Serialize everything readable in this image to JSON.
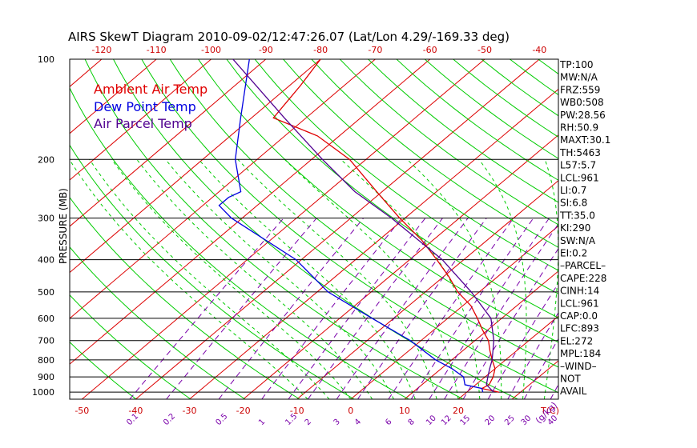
{
  "chart_data": {
    "type": "skew-t",
    "title": "AIRS SkewT Diagram 2010-09-02/12:47:26.07 (Lat/Lon 4.29/-169.33 deg)",
    "ylabel": "PRESSURE (MB)",
    "temperature_unit_label": "T(C)",
    "mixing_ratio_unit_label": "(g/kg)",
    "pressure_ticks": [
      100,
      200,
      300,
      400,
      500,
      600,
      700,
      800,
      900,
      1000
    ],
    "top_temperature_ticks": [
      -120,
      -110,
      -100,
      -90,
      -80,
      -70,
      -60,
      -50,
      -40
    ],
    "bottom_temperature_ticks": [
      -50,
      -40,
      -30,
      -20,
      -10,
      0,
      10,
      20
    ],
    "mixing_ratio_labels": [
      "0.1",
      "0.2",
      "0.5",
      "1",
      "1.5",
      "2",
      "3",
      "4",
      "6",
      "8",
      "10",
      "12",
      "15",
      "20",
      "25",
      "30",
      "40"
    ],
    "mixing_ratio_values": [
      0.1,
      0.2,
      0.5,
      1,
      1.5,
      2,
      3,
      4,
      6,
      8,
      10,
      12,
      15,
      20,
      25,
      30,
      40
    ],
    "legend": [
      {
        "name": "Ambient Air Temp",
        "color": "#e00000"
      },
      {
        "name": "Dew Point Temp",
        "color": "#0000e0"
      },
      {
        "name": "Air Parcel Temp",
        "color": "#500090"
      }
    ],
    "series": [
      {
        "name": "Ambient Air Temp",
        "color": "#e00000",
        "points": [
          [
            1000,
            26
          ],
          [
            975,
            22
          ],
          [
            950,
            22.5
          ],
          [
            900,
            21.5
          ],
          [
            850,
            20
          ],
          [
            800,
            17.5
          ],
          [
            750,
            15
          ],
          [
            700,
            12.5
          ],
          [
            650,
            9
          ],
          [
            600,
            5.5
          ],
          [
            550,
            1.5
          ],
          [
            500,
            -4
          ],
          [
            450,
            -9
          ],
          [
            400,
            -15
          ],
          [
            350,
            -22
          ],
          [
            300,
            -31
          ],
          [
            250,
            -41
          ],
          [
            200,
            -53
          ],
          [
            170,
            -64
          ],
          [
            150,
            -76
          ],
          [
            120,
            -78
          ],
          [
            100,
            -80
          ]
        ]
      },
      {
        "name": "Dew Point Temp",
        "color": "#0000e0",
        "points": [
          [
            1000,
            23
          ],
          [
            975,
            22
          ],
          [
            950,
            18
          ],
          [
            900,
            16
          ],
          [
            850,
            12
          ],
          [
            800,
            7
          ],
          [
            700,
            -2
          ],
          [
            600,
            -14
          ],
          [
            500,
            -28
          ],
          [
            400,
            -41
          ],
          [
            300,
            -62
          ],
          [
            275,
            -67
          ],
          [
            260,
            -67
          ],
          [
            250,
            -66
          ],
          [
            200,
            -74
          ],
          [
            150,
            -82
          ],
          [
            100,
            -93
          ]
        ]
      },
      {
        "name": "Air Parcel Temp",
        "color": "#500090",
        "points": [
          [
            1000,
            25
          ],
          [
            950,
            22
          ],
          [
            900,
            20.5
          ],
          [
            850,
            19
          ],
          [
            800,
            17.5
          ],
          [
            700,
            13.5
          ],
          [
            600,
            8
          ],
          [
            500,
            -1.5
          ],
          [
            400,
            -14
          ],
          [
            300,
            -32.5
          ],
          [
            250,
            -45
          ],
          [
            200,
            -58
          ],
          [
            150,
            -74
          ],
          [
            100,
            -96
          ]
        ]
      }
    ]
  },
  "stats": [
    "TP:100",
    "MW:N/A",
    "FRZ:559",
    "WB0:508",
    "PW:28.56",
    "RH:50.9",
    "MAXT:30.1",
    "TH:5463",
    "L57:5.7",
    "LCL:961",
    "LI:0.7",
    "SI:6.8",
    "TT:35.0",
    "KI:290",
    "SW:N/A",
    "EI:0.2",
    "–PARCEL–",
    "CAPE:228",
    "CINH:14",
    "LCL:961",
    "CAP:0.0",
    "LFC:893",
    "EL:272",
    "MPL:184",
    "–WIND–",
    "NOT",
    "AVAIL"
  ],
  "colors": {
    "isotherm": "#dd0000",
    "dry_adiabat": "#00cc00",
    "moist_adiabat": "#00cc00",
    "mixing_ratio": "#7a00aa",
    "isobar": "#000000"
  }
}
